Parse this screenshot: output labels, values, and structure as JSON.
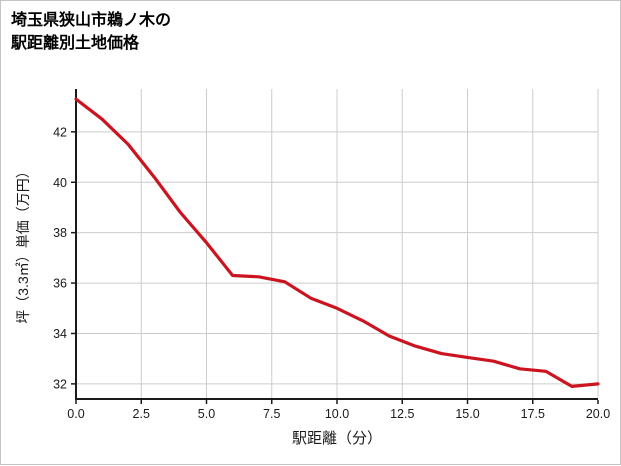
{
  "header": {
    "line1": "埼玉県狭山市鵜ノ木の",
    "line2": "駅距離別土地価格"
  },
  "chart_data": {
    "type": "line",
    "title": "埼玉県狭山市鵜ノ木の駅距離別土地価格",
    "xlabel": "駅距離（分）",
    "ylabel": "坪（3.3㎡）単価（万円）",
    "x": [
      0,
      1,
      2,
      3,
      4,
      5,
      6,
      7,
      8,
      9,
      10,
      11,
      12,
      13,
      14,
      15,
      16,
      17,
      18,
      19,
      20
    ],
    "values": [
      43.3,
      42.5,
      41.5,
      40.2,
      38.8,
      37.6,
      36.3,
      36.25,
      36.05,
      35.4,
      35.0,
      34.5,
      33.9,
      33.5,
      33.2,
      33.05,
      32.9,
      32.6,
      32.5,
      31.9,
      32.0
    ],
    "xlim": [
      0,
      20
    ],
    "ylim": [
      31.4,
      43.7
    ],
    "xtick_labels": [
      "0.0",
      "2.5",
      "5.0",
      "7.5",
      "10.0",
      "12.5",
      "15.0",
      "17.5",
      "20.0"
    ],
    "xtick_values": [
      0,
      2.5,
      5,
      7.5,
      10,
      12.5,
      15,
      17.5,
      20
    ],
    "ytick_labels": [
      "32",
      "34",
      "36",
      "38",
      "40",
      "42"
    ],
    "ytick_values": [
      32,
      34,
      36,
      38,
      40,
      42
    ],
    "grid": true,
    "legend": "none",
    "line_color": "#cb1420",
    "grid_color": "#cccccc",
    "axis_color": "#1a1a1a"
  }
}
